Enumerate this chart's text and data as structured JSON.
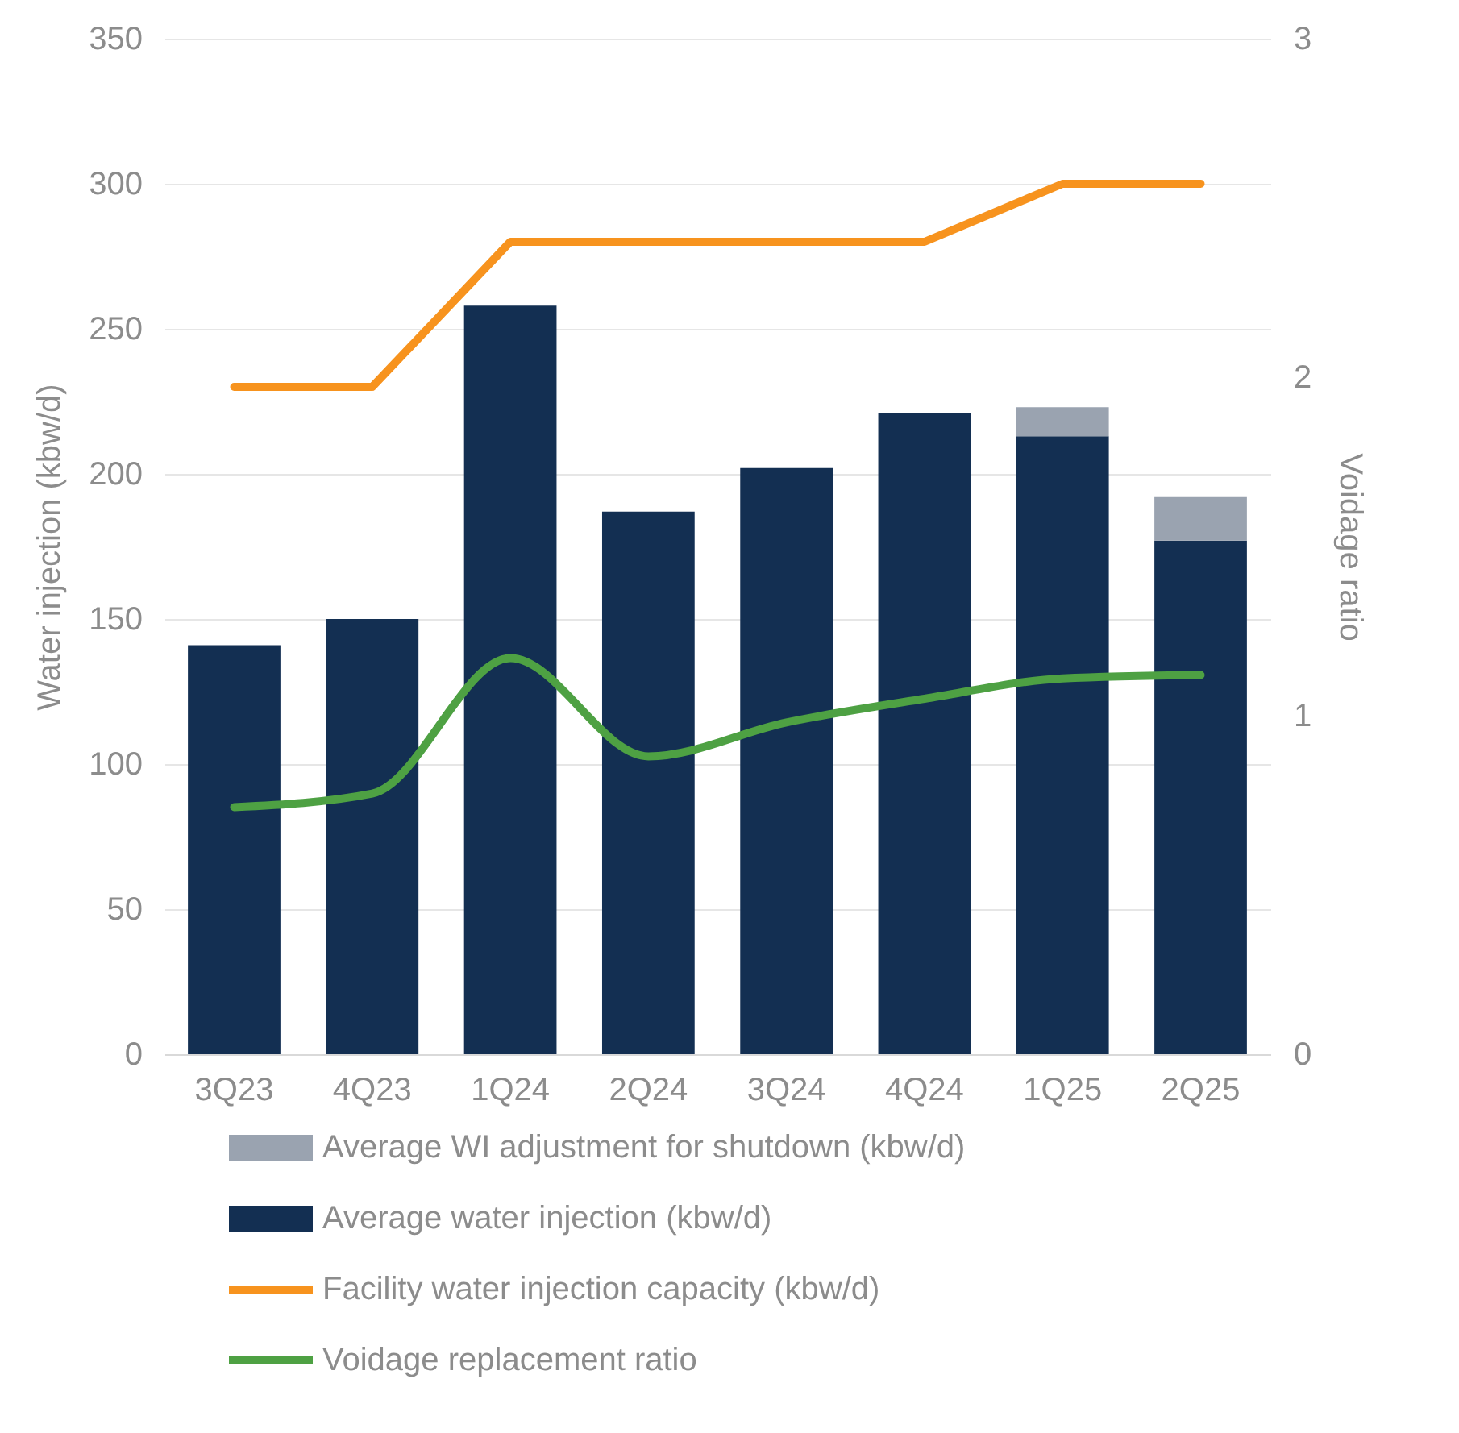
{
  "chart_data": {
    "type": "bar",
    "categories": [
      "3Q23",
      "4Q23",
      "1Q24",
      "2Q24",
      "3Q24",
      "4Q24",
      "1Q25",
      "2Q25"
    ],
    "ylabel": "Water injection (kbw/d)",
    "y2label": "Voidage ratio",
    "ylim": [
      0,
      350
    ],
    "yticks": [
      0,
      50,
      100,
      150,
      200,
      250,
      300,
      350
    ],
    "y2lim": [
      0,
      3
    ],
    "y2ticks": [
      0,
      1,
      2,
      3
    ],
    "stacked": true,
    "grid": "y",
    "legend": "bottom",
    "series": [
      {
        "name": "Average water injection (kbw/d)",
        "color": "#132f52",
        "values": [
          141,
          150,
          258,
          187,
          202,
          221,
          213,
          177
        ]
      },
      {
        "name": "Average WI adjustment for shutdown (kbw/d)",
        "color": "#9aa3b0",
        "values": [
          null,
          null,
          null,
          null,
          null,
          null,
          10,
          15
        ]
      },
      {
        "name": "Facility water injection capacity (kbw/d)",
        "type": "line",
        "color": "#f7931e",
        "values": [
          230,
          230,
          280,
          280,
          280,
          280,
          300,
          300
        ]
      },
      {
        "name": "Voidage replacement ratio",
        "type": "line",
        "axis": "y2",
        "color": "#4ea143",
        "values": [
          0.73,
          0.77,
          1.17,
          0.88,
          0.98,
          1.05,
          1.11,
          1.12
        ]
      }
    ]
  }
}
